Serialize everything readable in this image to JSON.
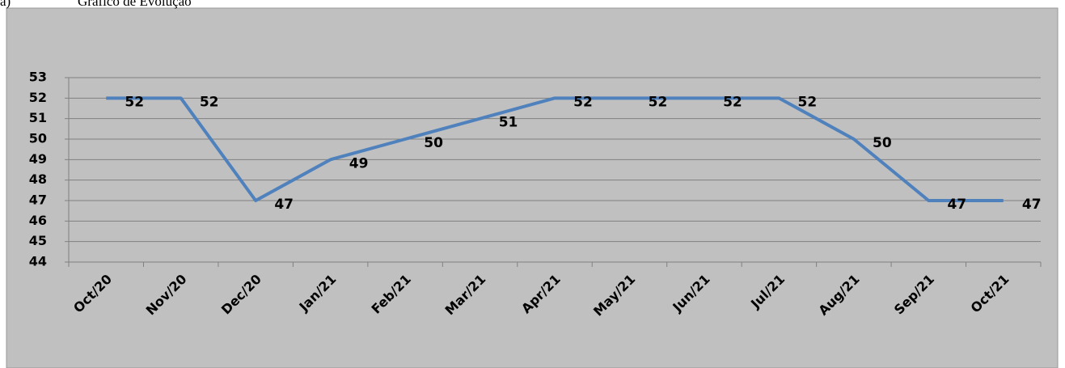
{
  "caption": {
    "marker": "a)",
    "text": "Gráfico de Evolução"
  },
  "chart_data": {
    "type": "line",
    "categories": [
      "Oct/20",
      "Nov/20",
      "Dec/20",
      "Jan/21",
      "Feb/21",
      "Mar/21",
      "Apr/21",
      "May/21",
      "Jun/21",
      "Jul/21",
      "Aug/21",
      "Sep/21",
      "Oct/21"
    ],
    "values": [
      52,
      52,
      47,
      49,
      50,
      51,
      52,
      52,
      52,
      52,
      50,
      47,
      47
    ],
    "color": "#4f81bd",
    "ylim": [
      44,
      53
    ],
    "yticks": [
      44,
      45,
      46,
      47,
      48,
      49,
      50,
      51,
      52,
      53
    ],
    "grid": true,
    "data_labels": true
  }
}
